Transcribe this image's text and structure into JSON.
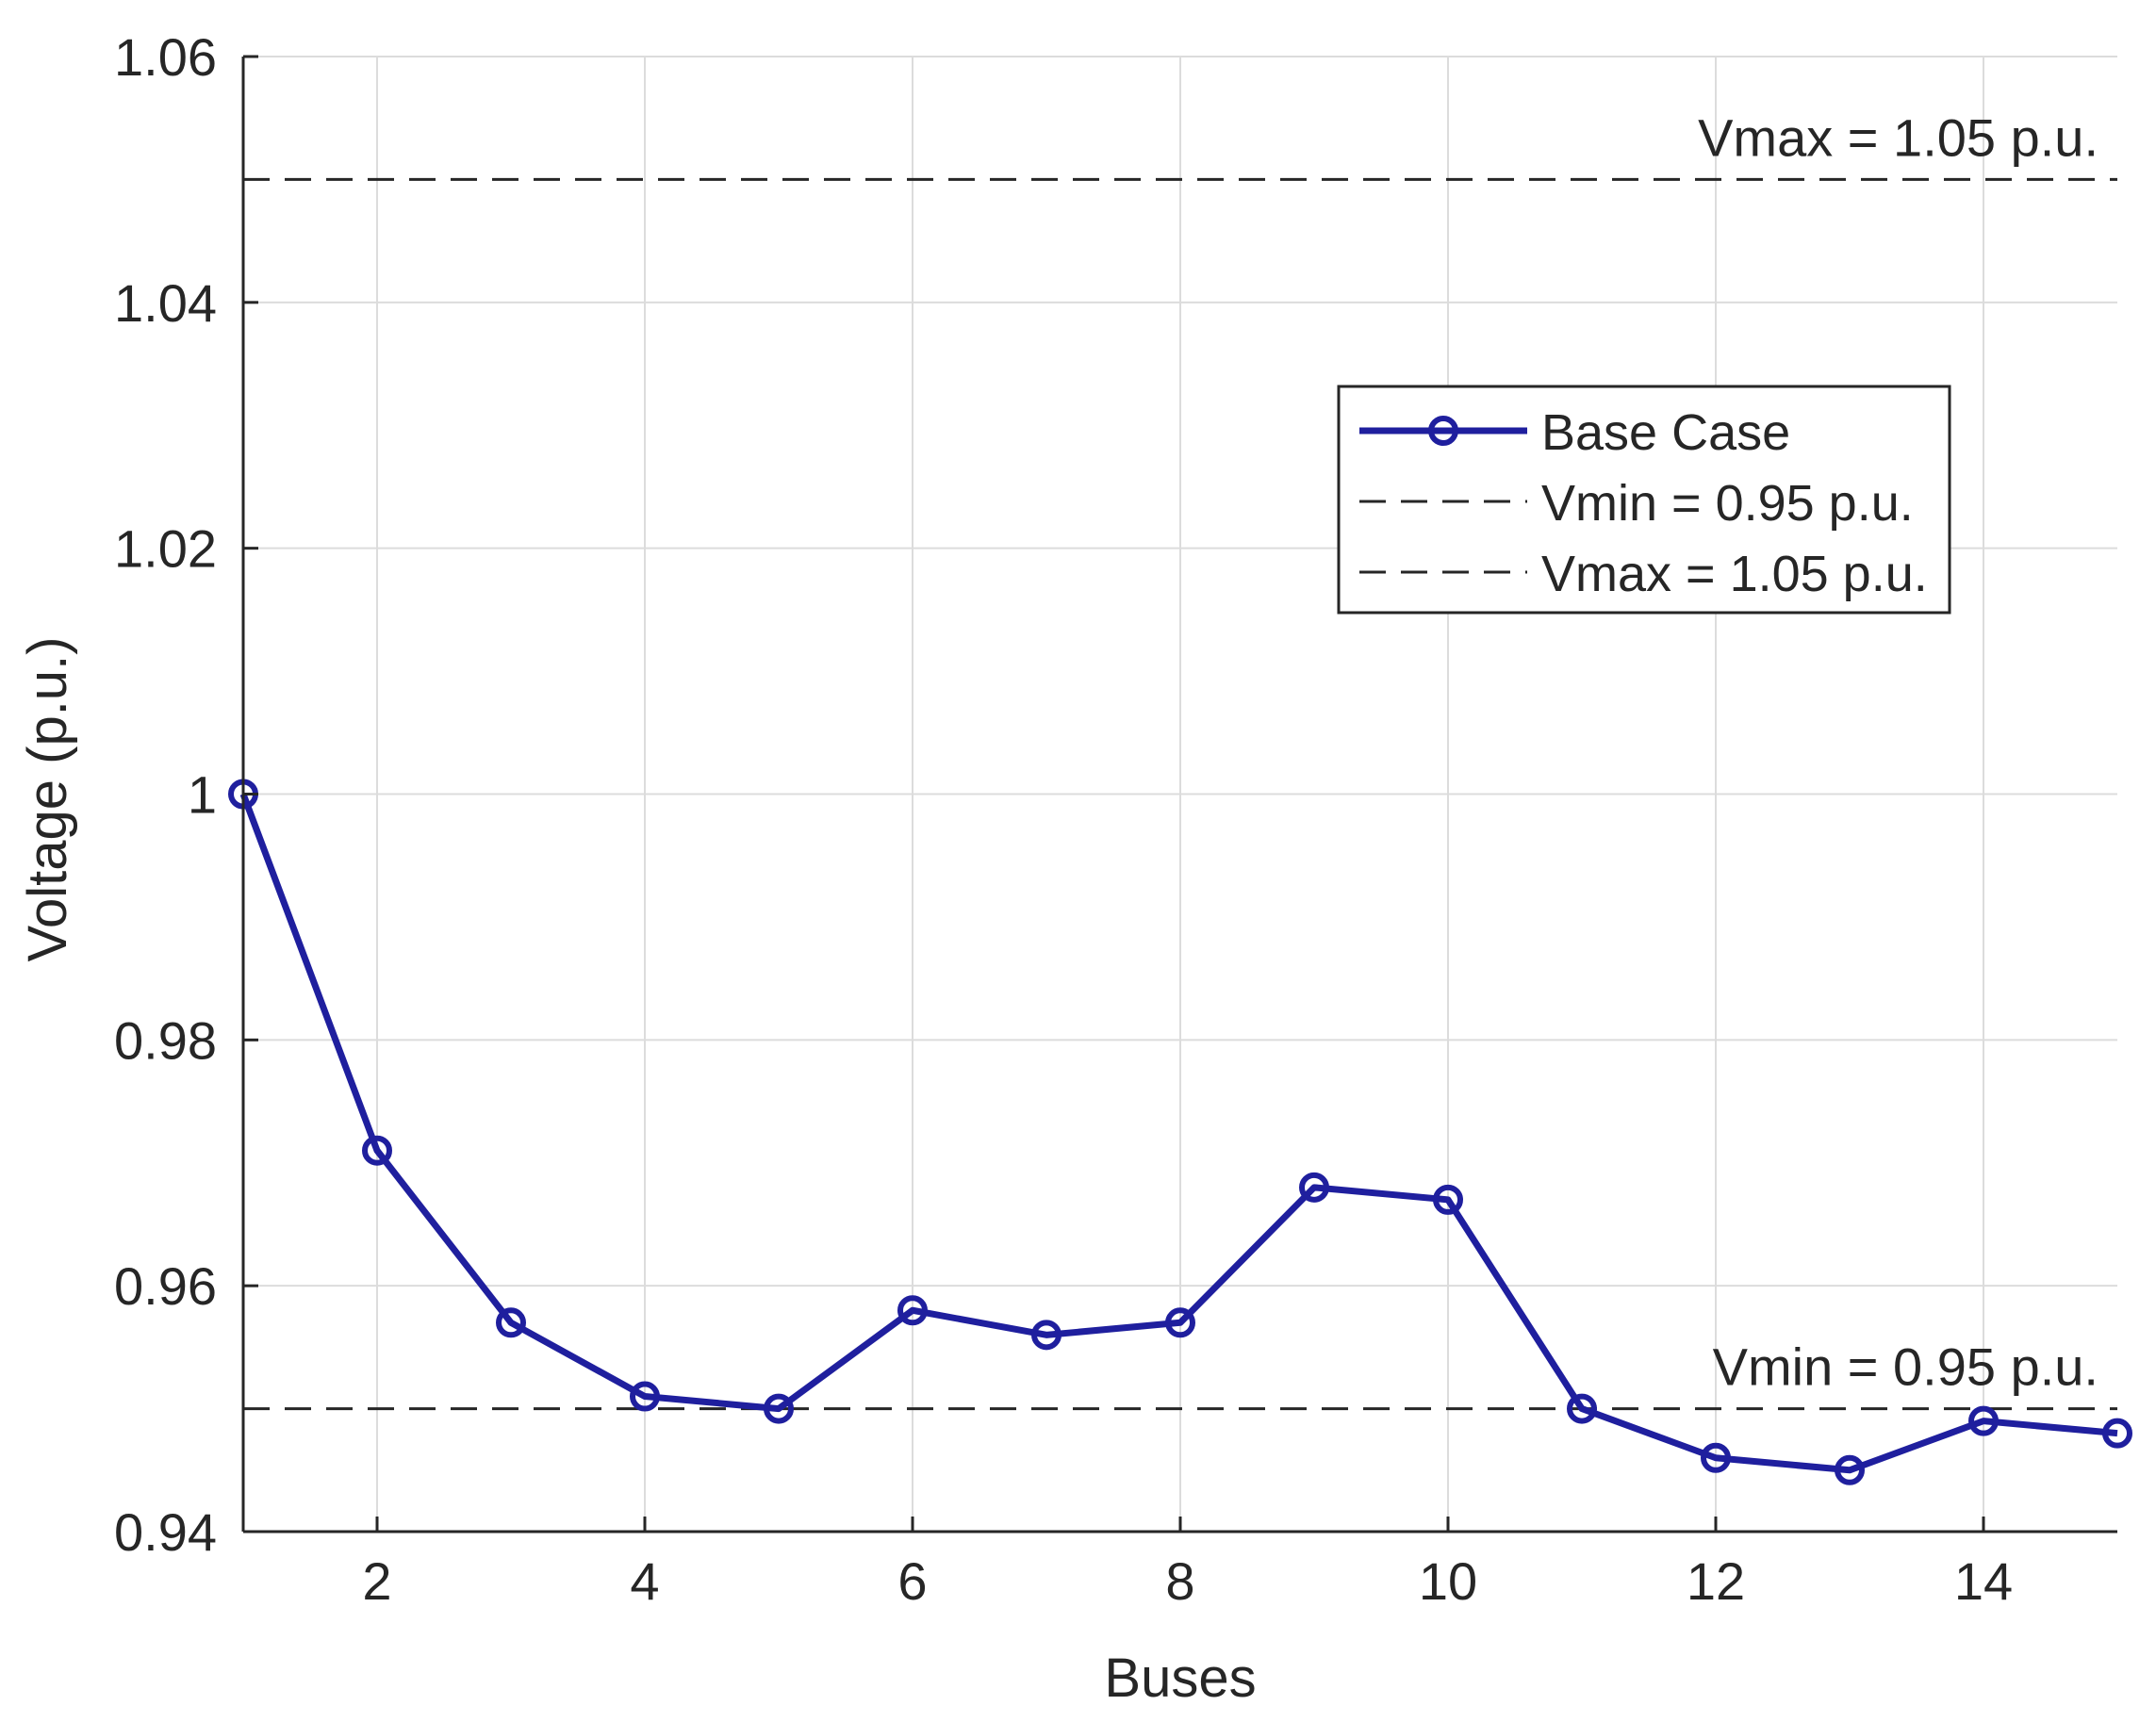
{
  "chart_data": {
    "type": "line",
    "title": "",
    "xlabel": "Buses",
    "ylabel": "Voltage (p.u.)",
    "xlim": [
      1,
      15
    ],
    "ylim": [
      0.94,
      1.06
    ],
    "x_ticks": [
      2,
      4,
      6,
      8,
      10,
      12,
      14
    ],
    "x_tick_labels": [
      "2",
      "4",
      "6",
      "8",
      "10",
      "12",
      "14"
    ],
    "y_ticks": [
      0.94,
      0.96,
      0.98,
      1.0,
      1.02,
      1.04,
      1.06
    ],
    "y_tick_labels": [
      "0.94",
      "0.96",
      "0.98",
      "1",
      "1.02",
      "1.04",
      "1.06"
    ],
    "grid": true,
    "legend_position": "upper-right",
    "series": [
      {
        "name": "Base Case",
        "color": "#1f1f9e",
        "marker": "circle",
        "x": [
          1,
          2,
          3,
          4,
          5,
          6,
          7,
          8,
          9,
          10,
          11,
          12,
          13,
          14,
          15
        ],
        "values": [
          1.0,
          0.971,
          0.957,
          0.951,
          0.95,
          0.958,
          0.956,
          0.957,
          0.968,
          0.967,
          0.95,
          0.946,
          0.945,
          0.949,
          0.948
        ]
      }
    ],
    "reference_lines": [
      {
        "name": "Vmin = 0.95 p.u.",
        "y": 0.95,
        "style": "dashed",
        "color": "#262626"
      },
      {
        "name": "Vmax = 1.05 p.u.",
        "y": 1.05,
        "style": "dashed",
        "color": "#262626"
      }
    ],
    "annotations": [
      {
        "text": "Vmax = 1.05 p.u.",
        "x": 15,
        "y": 1.05
      },
      {
        "text": "Vmin = 0.95 p.u.",
        "x": 15,
        "y": 0.95
      }
    ],
    "legend": [
      "Base Case",
      "Vmin = 0.95 p.u.",
      "Vmax = 1.05 p.u."
    ]
  }
}
